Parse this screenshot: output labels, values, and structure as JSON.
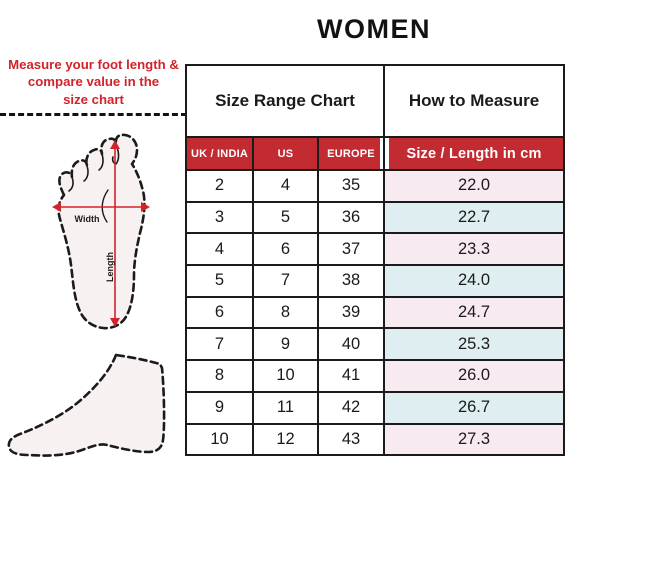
{
  "title": "WOMEN",
  "instruction": "Measure your foot length &\ncompare value in the\nsize chart",
  "diagram": {
    "width_label": "Width",
    "length_label": "Length"
  },
  "table": {
    "section_headers": {
      "left": "Size Range Chart",
      "right": "How to Measure"
    },
    "columns": [
      "UK / INDIA",
      "US",
      "EUROPE",
      "Size / Length in cm"
    ]
  },
  "chart_data": {
    "type": "table",
    "title": "Size Range Chart",
    "columns": [
      "UK / INDIA",
      "US",
      "EUROPE",
      "Size / Length in cm"
    ],
    "rows": [
      [
        "2",
        "4",
        "35",
        "22.0"
      ],
      [
        "3",
        "5",
        "36",
        "22.7"
      ],
      [
        "4",
        "6",
        "37",
        "23.3"
      ],
      [
        "5",
        "7",
        "38",
        "24.0"
      ],
      [
        "6",
        "8",
        "39",
        "24.7"
      ],
      [
        "7",
        "9",
        "40",
        "25.3"
      ],
      [
        "8",
        "10",
        "41",
        "26.0"
      ],
      [
        "9",
        "11",
        "42",
        "26.7"
      ],
      [
        "10",
        "12",
        "43",
        "27.3"
      ]
    ]
  },
  "colors": {
    "header_red": "#C32B33",
    "accent_red": "#D2232A",
    "row_pink": "#F8EAF1",
    "row_blue": "#DFEFF1",
    "foot_fill": "#F8F1F1",
    "line_black": "#1B1B1B"
  }
}
